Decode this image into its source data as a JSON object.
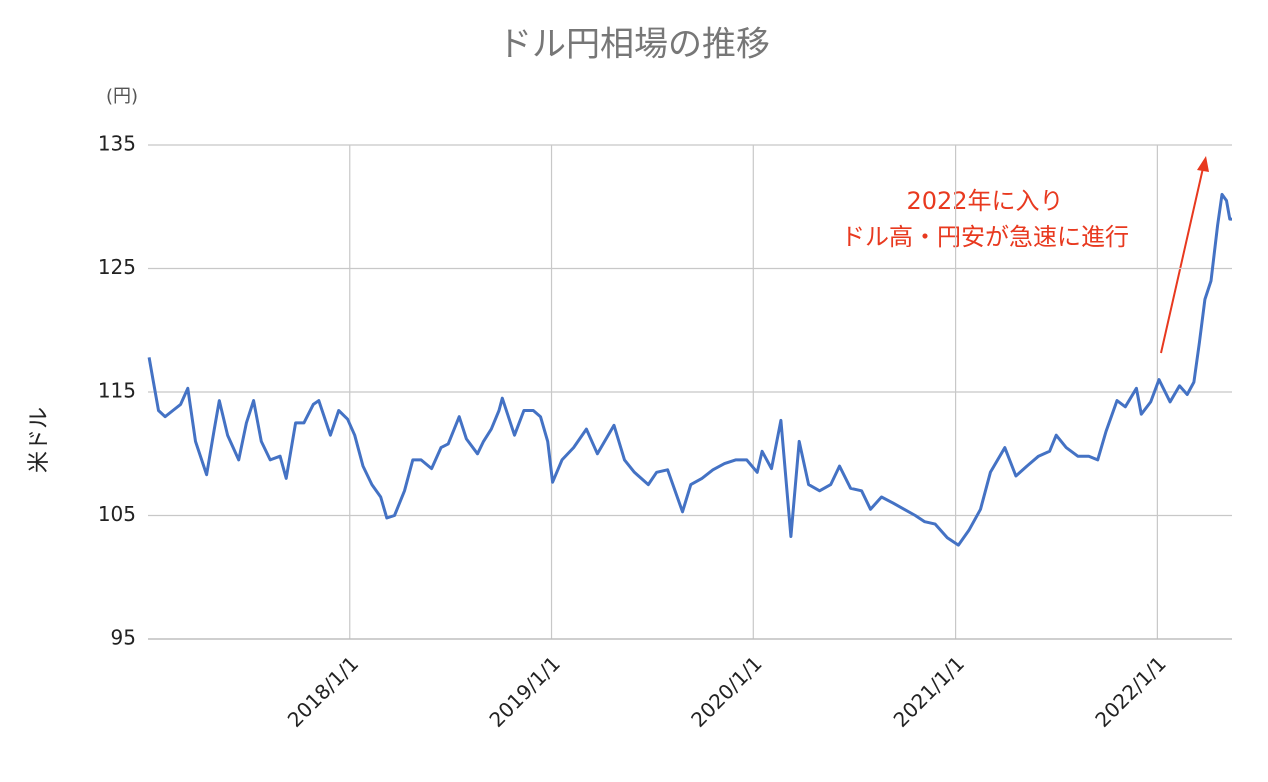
{
  "chart_data": {
    "type": "line",
    "title": "ドル円相場の推移",
    "y_unit": "(円)",
    "y_label": "米ドル",
    "annotation": [
      "2022年に入り",
      "ドル高・円安が急速に進行"
    ],
    "annotation_color": "#e8391f",
    "x": [
      "2017/1/3",
      "2017/1/10",
      "2017/1/20",
      "2017/2/1",
      "2017/2/15",
      "2017/3/1",
      "2017/3/14",
      "2017/3/28",
      "2017/4/17",
      "2017/5/1",
      "2017/5/10",
      "2017/5/25",
      "2017/6/14",
      "2017/6/28",
      "2017/7/11",
      "2017/7/25",
      "2017/8/10",
      "2017/8/28",
      "2017/9/8",
      "2017/9/25",
      "2017/10/10",
      "2017/10/27",
      "2017/11/6",
      "2017/11/27",
      "2017/12/12",
      "2017/12/28",
      "2018/1/10",
      "2018/1/25",
      "2018/2/10",
      "2018/2/26",
      "2018/3/9",
      "2018/3/23",
      "2018/4/10",
      "2018/4/25",
      "2018/5/10",
      "2018/5/29",
      "2018/6/15",
      "2018/6/28",
      "2018/7/18",
      "2018/7/31",
      "2018/8/20",
      "2018/8/31",
      "2018/9/14",
      "2018/9/28",
      "2018/10/4",
      "2018/10/26",
      "2018/11/12",
      "2018/11/29",
      "2018/12/12",
      "2018/12/25",
      "2019/1/3",
      "2019/1/20",
      "2019/2/10",
      "2019/3/5",
      "2019/3/25",
      "2019/4/24",
      "2019/5/13",
      "2019/5/31",
      "2019/6/25",
      "2019/7/10",
      "2019/7/30",
      "2019/8/26",
      "2019/9/10",
      "2019/9/30",
      "2019/10/20",
      "2019/11/10",
      "2019/11/30",
      "2019/12/20",
      "2020/1/8",
      "2020/1/17",
      "2020/2/3",
      "2020/2/20",
      "2020/3/9",
      "2020/3/24",
      "2020/4/10",
      "2020/4/30",
      "2020/5/20",
      "2020/6/5",
      "2020/6/25",
      "2020/7/15",
      "2020/7/31",
      "2020/8/20",
      "2020/9/10",
      "2020/9/30",
      "2020/10/20",
      "2020/11/6",
      "2020/11/25",
      "2020/12/17",
      "2021/1/6",
      "2021/1/25",
      "2021/2/15",
      "2021/3/5",
      "2021/3/31",
      "2021/4/20",
      "2021/5/10",
      "2021/5/31",
      "2021/6/20",
      "2021/7/2",
      "2021/7/20",
      "2021/8/10",
      "2021/8/30",
      "2021/9/15",
      "2021/9/30",
      "2021/10/20",
      "2021/11/4",
      "2021/11/24",
      "2021/12/3",
      "2021/12/20",
      "2022/1/4",
      "2022/1/24",
      "2022/2/10",
      "2022/2/24",
      "2022/3/8",
      "2022/3/18",
      "2022/3/28",
      "2022/4/8",
      "2022/4/20",
      "2022/4/28",
      "2022/5/6",
      "2022/5/12",
      "2022/5/16"
    ],
    "series": [
      {
        "name": "米ドル",
        "color": "#4472c4",
        "values": [
          117.8,
          116,
          113.5,
          113,
          113.5,
          114,
          115.3,
          111,
          108.3,
          112,
          114.3,
          111.5,
          109.5,
          112.5,
          114.3,
          111,
          109.5,
          109.8,
          108,
          112.5,
          112.5,
          114,
          114.3,
          111.5,
          113.5,
          112.8,
          111.5,
          109,
          107.5,
          106.5,
          104.8,
          105,
          107,
          109.5,
          109.5,
          108.8,
          110.5,
          110.8,
          113,
          111.2,
          110,
          111,
          112,
          113.5,
          114.5,
          111.5,
          113.5,
          113.5,
          113,
          111,
          107.7,
          109.5,
          110.5,
          112,
          110,
          112.3,
          109.5,
          108.5,
          107.5,
          108.5,
          108.7,
          105.3,
          107.5,
          108,
          108.7,
          109.2,
          109.5,
          109.5,
          108.5,
          110.2,
          108.8,
          112.7,
          103.3,
          111,
          107.5,
          107,
          107.5,
          109,
          107.2,
          107,
          105.5,
          106.5,
          106,
          105.5,
          105,
          104.5,
          104.3,
          103.2,
          102.6,
          103.8,
          105.5,
          108.5,
          110.5,
          108.2,
          109,
          109.8,
          110.2,
          111.5,
          110.5,
          109.8,
          109.8,
          109.5,
          111.8,
          114.3,
          113.8,
          115.3,
          113.2,
          114.2,
          116,
          114.2,
          115.5,
          114.8,
          115.8,
          119,
          122.5,
          124,
          128.5,
          131,
          130.5,
          129,
          129
        ]
      }
    ],
    "xlim": [
      "2017/1/1",
      "2022/5/16"
    ],
    "xticks": [
      "2018/1/1",
      "2019/1/1",
      "2020/1/1",
      "2021/1/1",
      "2022/1/1"
    ],
    "ylim": [
      95,
      135
    ],
    "yticks": [
      95,
      105,
      115,
      125,
      135
    ],
    "grid": true
  }
}
